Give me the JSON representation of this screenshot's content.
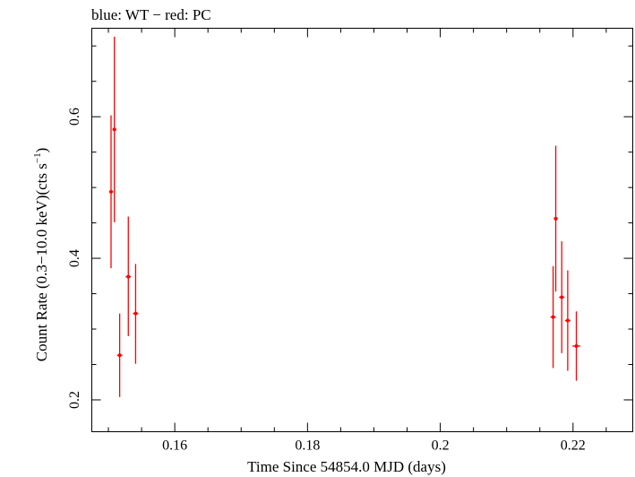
{
  "chart_data": {
    "type": "scatter",
    "title": "blue: WT − red: PC",
    "xlabel": "Time Since 54854.0 MJD (days)",
    "ylabel_main": "Count Rate (0.3−10.0 keV)(cts s",
    "ylabel_sup": "−1",
    "ylabel_end": ")",
    "xlim": [
      0.1475,
      0.229
    ],
    "ylim": [
      0.155,
      0.725
    ],
    "x_ticks": [
      0.16,
      0.18,
      0.2,
      0.22
    ],
    "x_tick_labels": [
      "0.16",
      "0.18",
      "0.2",
      "0.22"
    ],
    "y_ticks": [
      0.2,
      0.4,
      0.6
    ],
    "y_tick_labels": [
      "0.2",
      "0.4",
      "0.6"
    ],
    "series": [
      {
        "name": "PC",
        "color": "#ff0000",
        "points": [
          {
            "x": 0.1504,
            "y": 0.494,
            "xerr": 0.0003,
            "ylo": 0.386,
            "yhi": 0.602
          },
          {
            "x": 0.1509,
            "y": 0.582,
            "xerr": 0.0003,
            "ylo": 0.451,
            "yhi": 0.713
          },
          {
            "x": 0.1517,
            "y": 0.263,
            "xerr": 0.0004,
            "ylo": 0.204,
            "yhi": 0.322
          },
          {
            "x": 0.153,
            "y": 0.374,
            "xerr": 0.0004,
            "ylo": 0.29,
            "yhi": 0.459
          },
          {
            "x": 0.1541,
            "y": 0.322,
            "xerr": 0.0004,
            "ylo": 0.251,
            "yhi": 0.392
          },
          {
            "x": 0.217,
            "y": 0.317,
            "xerr": 0.0004,
            "ylo": 0.245,
            "yhi": 0.389
          },
          {
            "x": 0.2174,
            "y": 0.456,
            "xerr": 0.0003,
            "ylo": 0.353,
            "yhi": 0.559
          },
          {
            "x": 0.2183,
            "y": 0.345,
            "xerr": 0.0004,
            "ylo": 0.266,
            "yhi": 0.424
          },
          {
            "x": 0.2192,
            "y": 0.312,
            "xerr": 0.0004,
            "ylo": 0.241,
            "yhi": 0.383
          },
          {
            "x": 0.2205,
            "y": 0.276,
            "xerr": 0.0006,
            "ylo": 0.227,
            "yhi": 0.325
          }
        ]
      }
    ]
  }
}
